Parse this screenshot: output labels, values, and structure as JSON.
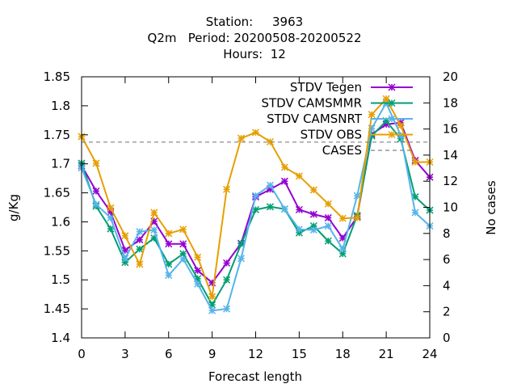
{
  "chart_data": {
    "type": "line",
    "title_lines": [
      "Station:     3963",
      "Q2m   Period: 20200508-20200522",
      "Hours:  12"
    ],
    "xlabel": "Forecast length",
    "ylabel": "g/Kg",
    "y2label": "No cases",
    "xlim": [
      0,
      24
    ],
    "ylim": [
      1.4,
      1.85
    ],
    "y2lim": [
      0,
      20
    ],
    "x_ticks": [
      0,
      3,
      6,
      9,
      12,
      15,
      18,
      21,
      24
    ],
    "y_ticks": [
      1.4,
      1.45,
      1.5,
      1.55,
      1.6,
      1.65,
      1.7,
      1.75,
      1.8,
      1.85
    ],
    "y2_ticks": [
      0,
      2,
      4,
      6,
      8,
      10,
      12,
      14,
      16,
      18,
      20
    ],
    "legend_position": "top-right",
    "x": [
      0,
      1,
      2,
      3,
      4,
      5,
      6,
      7,
      8,
      9,
      10,
      11,
      12,
      13,
      14,
      15,
      16,
      17,
      18,
      19,
      20,
      21,
      22,
      23,
      24
    ],
    "series": [
      {
        "name": "STDV Tegen",
        "color": "#9400d3",
        "marker": "x",
        "values": [
          1.697,
          1.653,
          1.617,
          1.551,
          1.569,
          1.601,
          1.562,
          1.562,
          1.516,
          1.495,
          1.529,
          1.563,
          1.643,
          1.656,
          1.67,
          1.621,
          1.613,
          1.607,
          1.572,
          1.609,
          1.751,
          1.768,
          1.771,
          1.706,
          1.677
        ]
      },
      {
        "name": "STDV CAMSMMR",
        "color": "#009e73",
        "marker": "x",
        "values": [
          1.701,
          1.627,
          1.588,
          1.53,
          1.553,
          1.572,
          1.527,
          1.545,
          1.502,
          1.457,
          1.5,
          1.562,
          1.621,
          1.626,
          1.622,
          1.581,
          1.593,
          1.567,
          1.545,
          1.611,
          1.748,
          1.774,
          1.743,
          1.643,
          1.62
        ]
      },
      {
        "name": "STDV CAMSNRT",
        "color": "#56b4e9",
        "marker": "x",
        "values": [
          1.693,
          1.63,
          1.607,
          1.537,
          1.583,
          1.586,
          1.508,
          1.536,
          1.493,
          1.447,
          1.45,
          1.537,
          1.645,
          1.663,
          1.622,
          1.587,
          1.586,
          1.593,
          1.553,
          1.645,
          1.761,
          1.805,
          1.749,
          1.616,
          1.593
        ]
      },
      {
        "name": "STDV OBS",
        "color": "#e69f00",
        "marker": "x",
        "values": [
          1.747,
          1.701,
          1.624,
          1.576,
          1.527,
          1.616,
          1.58,
          1.587,
          1.539,
          1.471,
          1.656,
          1.744,
          1.754,
          1.738,
          1.694,
          1.679,
          1.655,
          1.631,
          1.606,
          1.607,
          1.785,
          1.812,
          1.766,
          1.703,
          1.703
        ]
      },
      {
        "name": "CASES",
        "color": "#808080",
        "dashed": true,
        "axis": "y2",
        "values": [
          15,
          15,
          15,
          15,
          15,
          15,
          15,
          15,
          15,
          15,
          15,
          15,
          15,
          15,
          15,
          15,
          15,
          15,
          15,
          15,
          15,
          15,
          15,
          15,
          15
        ]
      }
    ]
  }
}
